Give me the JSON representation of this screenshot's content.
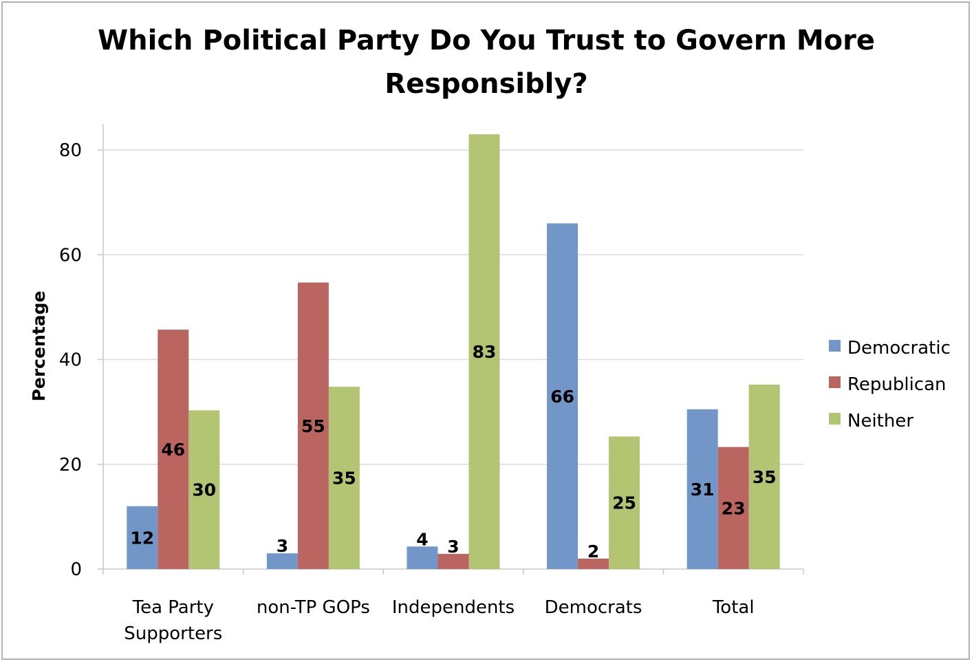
{
  "chart_data": {
    "type": "bar",
    "title_lines": [
      "Which Political Party Do You Trust to Govern More",
      "Responsibly?"
    ],
    "xlabel": "",
    "ylabel": "Percentage",
    "ylim": [
      0,
      85
    ],
    "yticks": [
      0,
      20,
      40,
      60,
      80
    ],
    "grid": true,
    "legend_position": "right",
    "categories": [
      [
        "Tea Party",
        "Supporters"
      ],
      [
        "non-TP GOPs"
      ],
      [
        "Independents"
      ],
      [
        "Democrats"
      ],
      [
        "Total"
      ]
    ],
    "series": [
      {
        "name": "Democratic",
        "color": "#7396c8",
        "values": [
          12,
          3,
          4.3,
          66,
          30.5
        ],
        "labels": [
          "12",
          "3",
          "4",
          "66",
          "31"
        ]
      },
      {
        "name": "Republican",
        "color": "#bb6560",
        "values": [
          45.7,
          54.7,
          2.9,
          2,
          23.3
        ],
        "labels": [
          "46",
          "55",
          "3",
          "2",
          "23"
        ]
      },
      {
        "name": "Neither",
        "color": "#b3c472",
        "values": [
          30.3,
          34.8,
          83,
          25.3,
          35.2
        ],
        "labels": [
          "30",
          "35",
          "83",
          "25",
          "35"
        ]
      }
    ]
  }
}
